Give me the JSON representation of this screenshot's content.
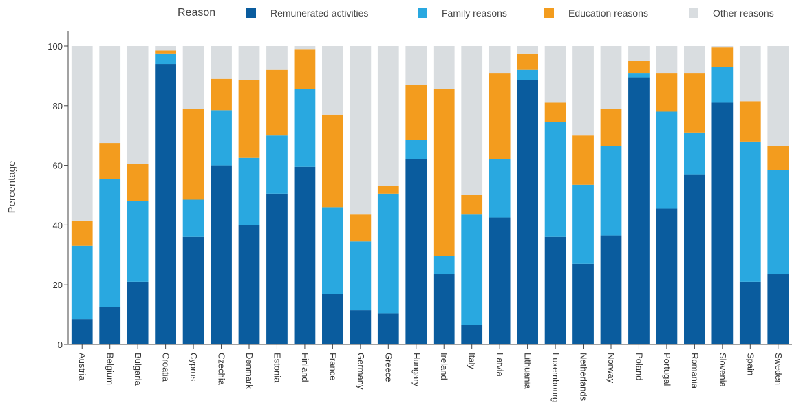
{
  "chart_data": {
    "type": "bar",
    "stacked": true,
    "ylabel": "Percentage",
    "xlabel": "",
    "ylim": [
      0,
      100
    ],
    "yticks": [
      0,
      20,
      40,
      60,
      80,
      100
    ],
    "grid": false,
    "legend": {
      "title": "Reason",
      "placement": "top"
    },
    "categories": [
      "Austria",
      "Belgium",
      "Bulgaria",
      "Croatia",
      "Cyprus",
      "Czechia",
      "Denmark",
      "Estonia",
      "Finland",
      "France",
      "Germany",
      "Greece",
      "Hungary",
      "Ireland",
      "Italy",
      "Latvia",
      "Lithuania",
      "Luxembourg",
      "Netherlands",
      "Norway",
      "Poland",
      "Portugal",
      "Romania",
      "Slovenia",
      "Spain",
      "Sweden"
    ],
    "series": [
      {
        "name": "Remunerated activities",
        "color": "#0a5c9e",
        "values": [
          8.5,
          12.5,
          21,
          94,
          36,
          60,
          40,
          50.5,
          59.5,
          17,
          11.5,
          10.5,
          62,
          23.5,
          6.5,
          42.5,
          88.5,
          36,
          27,
          36.5,
          89.5,
          45.5,
          57,
          81,
          21,
          23.5
        ]
      },
      {
        "name": "Family reasons",
        "color": "#29a8e0",
        "values": [
          24.5,
          43,
          27,
          3.5,
          12.5,
          18.5,
          22.5,
          19.5,
          26,
          29,
          23,
          40,
          6.5,
          6,
          37,
          19.5,
          3.5,
          38.5,
          26.5,
          30,
          1.5,
          32.5,
          14,
          12,
          47,
          35
        ]
      },
      {
        "name": "Education reasons",
        "color": "#f39c1e",
        "values": [
          8.5,
          12,
          12.5,
          1,
          30.5,
          10.5,
          26,
          22,
          13.5,
          31,
          9,
          2.5,
          18.5,
          56,
          6.5,
          29,
          5.5,
          6.5,
          16.5,
          12.5,
          4,
          13,
          20,
          6.5,
          13.5,
          8
        ]
      },
      {
        "name": "Other reasons",
        "color": "#d9dde0",
        "values": [
          58.5,
          32.5,
          39.5,
          1.5,
          21,
          11,
          11.5,
          8,
          1,
          23,
          56.5,
          47,
          13,
          14.5,
          50,
          9,
          2.5,
          19,
          30,
          21,
          5,
          9,
          9,
          0.5,
          18.5,
          33.5
        ]
      }
    ]
  }
}
